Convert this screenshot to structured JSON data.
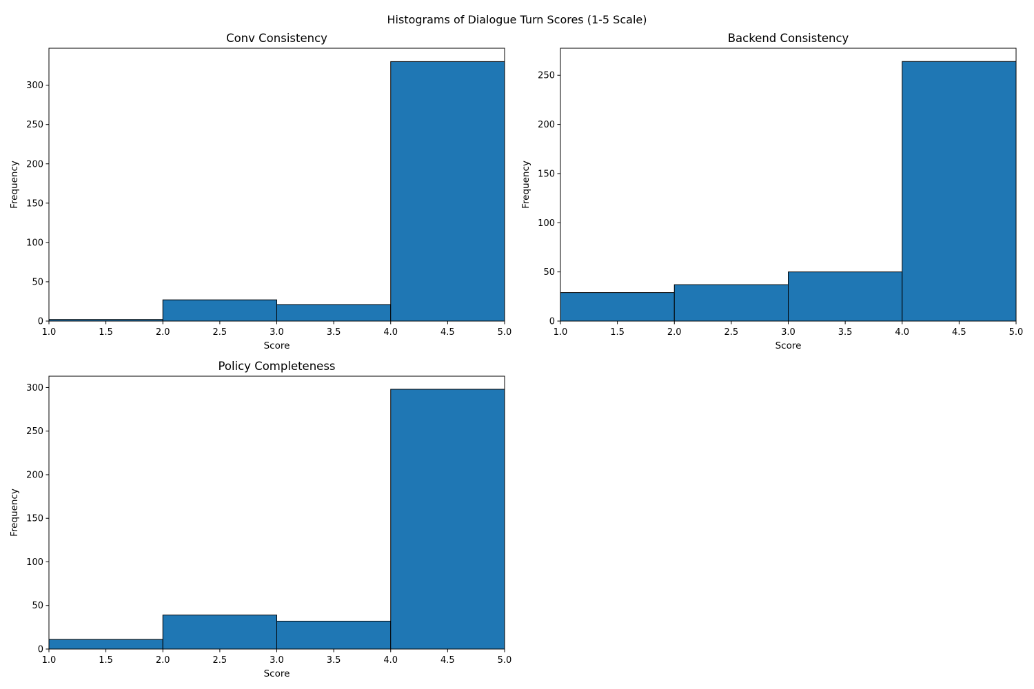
{
  "figure": {
    "title": "Histograms of Dialogue Turn Scores (1-5 Scale)"
  },
  "colors": {
    "bar_fill": "#1f77b4",
    "bar_edge": "#000000",
    "axes": "#000000",
    "background": "#ffffff"
  },
  "chart_data": [
    {
      "type": "bar",
      "title": "Conv Consistency",
      "xlabel": "Score",
      "ylabel": "Frequency",
      "bin_edges": [
        1,
        2,
        3,
        4,
        5
      ],
      "values": [
        2,
        27,
        21,
        330
      ],
      "xlim": [
        1,
        5
      ],
      "ylim": [
        0,
        347
      ],
      "xticks": [
        1.0,
        1.5,
        2.0,
        2.5,
        3.0,
        3.5,
        4.0,
        4.5,
        5.0
      ],
      "yticks": [
        0,
        50,
        100,
        150,
        200,
        250,
        300
      ],
      "grid": false
    },
    {
      "type": "bar",
      "title": "Backend Consistency",
      "xlabel": "Score",
      "ylabel": "Frequency",
      "bin_edges": [
        1,
        2,
        3,
        4,
        5
      ],
      "values": [
        29,
        37,
        50,
        264
      ],
      "xlim": [
        1,
        5
      ],
      "ylim": [
        0,
        277.5
      ],
      "xticks": [
        1.0,
        1.5,
        2.0,
        2.5,
        3.0,
        3.5,
        4.0,
        4.5,
        5.0
      ],
      "yticks": [
        0,
        50,
        100,
        150,
        200,
        250
      ],
      "grid": false
    },
    {
      "type": "bar",
      "title": "Policy Completeness",
      "xlabel": "Score",
      "ylabel": "Frequency",
      "bin_edges": [
        1,
        2,
        3,
        4,
        5
      ],
      "values": [
        11,
        39,
        32,
        298
      ],
      "xlim": [
        1,
        5
      ],
      "ylim": [
        0,
        313
      ],
      "xticks": [
        1.0,
        1.5,
        2.0,
        2.5,
        3.0,
        3.5,
        4.0,
        4.5,
        5.0
      ],
      "yticks": [
        0,
        50,
        100,
        150,
        200,
        250,
        300
      ],
      "grid": false
    }
  ]
}
